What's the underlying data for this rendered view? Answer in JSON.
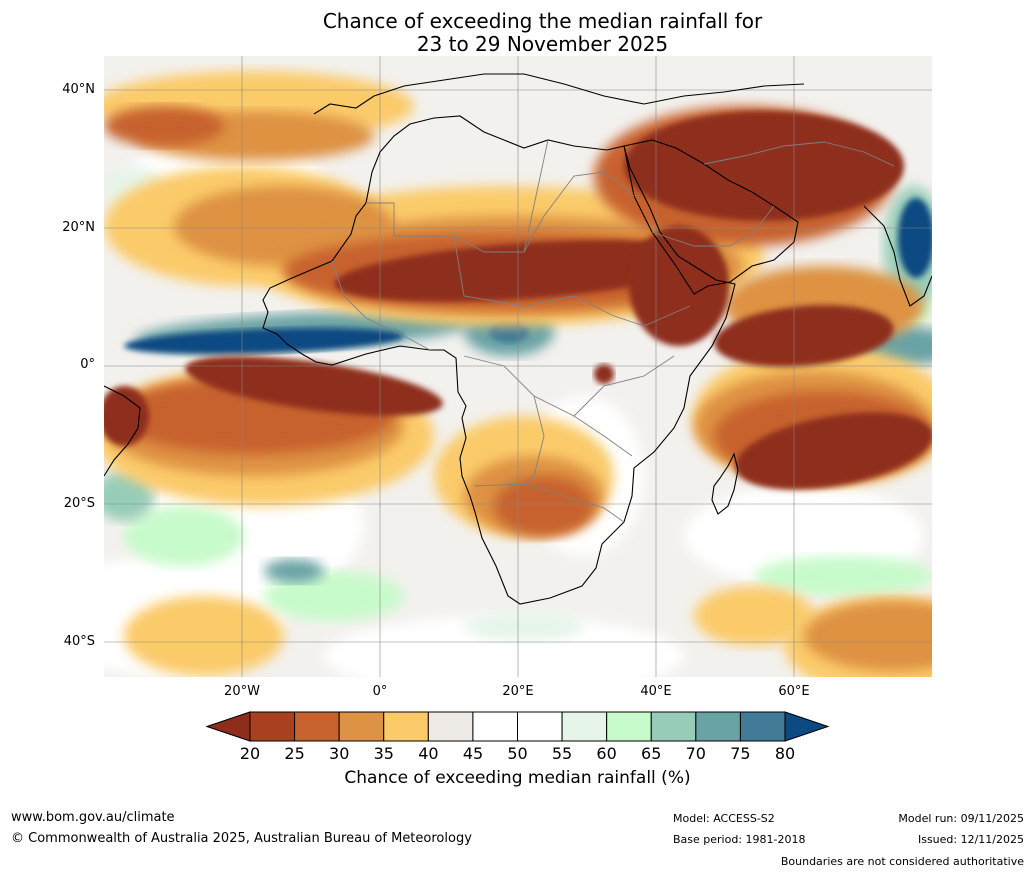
{
  "title": {
    "line1": "Chance of exceeding the median rainfall for",
    "line2": "23 to 29 November 2025"
  },
  "axes": {
    "lat_ticks": [
      "40°N",
      "20°N",
      "0°",
      "20°S",
      "40°S"
    ],
    "lon_ticks": [
      "20°W",
      "0°",
      "20°E",
      "40°E",
      "60°E"
    ]
  },
  "map": {
    "extent": {
      "lon_min": -40,
      "lon_max": 80,
      "lat_min": -45,
      "lat_max": 45
    },
    "colors": {
      "c20": "#8e2d1c",
      "c25": "#a9401f",
      "c30": "#c7622e",
      "c35": "#de9243",
      "c40": "#fbcb6a",
      "c45": "#eeebe6",
      "c50": "#ffffff",
      "c55": "#ffffff",
      "c60": "#e6f5e9",
      "c65": "#c8fbcb",
      "c70": "#97cdb8",
      "c75": "#6aa3a5",
      "c80": "#427a98",
      "c80plus": "#0e4a82"
    }
  },
  "colorbar": {
    "ticks": [
      "20",
      "25",
      "30",
      "35",
      "40",
      "45",
      "50",
      "55",
      "60",
      "65",
      "70",
      "75",
      "80"
    ],
    "label": "Chance of exceeding median rainfall (%)",
    "segment_colors": [
      "#a9401f",
      "#c7622e",
      "#de9243",
      "#fbcb6a",
      "#eeebe6",
      "#ffffff",
      "#ffffff",
      "#e6f5e9",
      "#c8fbcb",
      "#97cdb8",
      "#6aa3a5",
      "#427a98"
    ],
    "low_end_color": "#8e2d1c",
    "high_end_color": "#0e4a82"
  },
  "footer": {
    "url": "www.bom.gov.au/climate",
    "copyright": "© Commonwealth of Australia 2025, Australian Bureau of Meteorology",
    "model": "Model: ACCESS-S2",
    "base_period": "Base period: 1981-2018",
    "model_run": "Model run: 09/11/2025",
    "issued": "Issued: 12/11/2025",
    "disclaimer": "Boundaries are not considered authoritative"
  }
}
